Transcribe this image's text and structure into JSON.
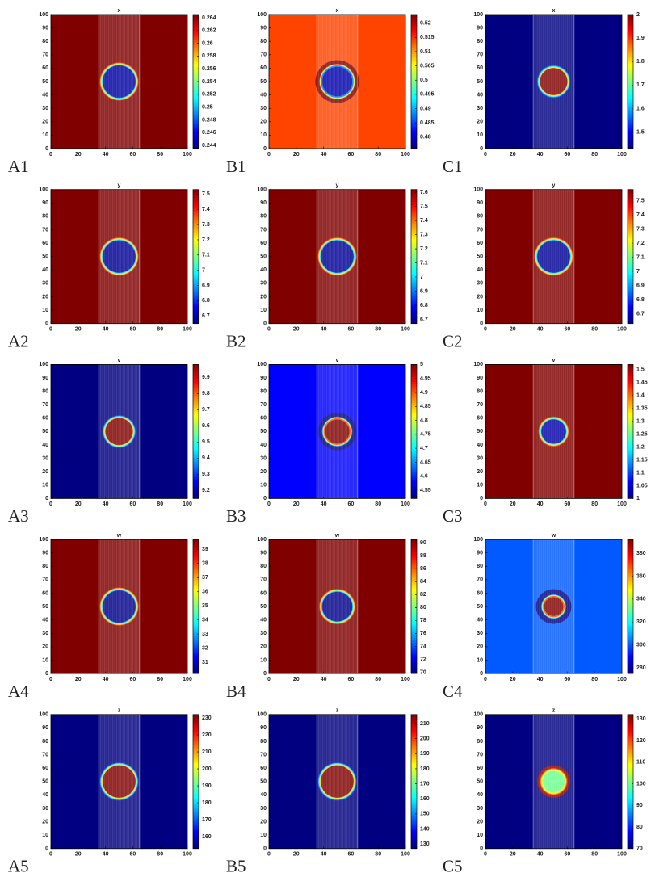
{
  "chart_data": [
    {
      "type": "heatmap",
      "title": "x",
      "panel_label": "A1",
      "xlim": [
        0,
        100
      ],
      "ylim": [
        0,
        100
      ],
      "xticks": [
        0,
        20,
        40,
        60,
        80,
        100
      ],
      "yticks": [
        0,
        10,
        20,
        30,
        40,
        50,
        60,
        70,
        80,
        90,
        100
      ],
      "clim": [
        0.2435,
        0.2645
      ],
      "cticks": [
        0.244,
        0.246,
        0.248,
        0.25,
        0.252,
        0.254,
        0.256,
        0.258,
        0.26,
        0.262,
        0.264
      ],
      "outer": 0.2645,
      "inner": 0.2442,
      "center": [
        50,
        50
      ],
      "radius": 13,
      "stripe": [
        35,
        65
      ]
    },
    {
      "type": "heatmap",
      "title": "x",
      "panel_label": "B1",
      "xlim": [
        0,
        100
      ],
      "ylim": [
        0,
        100
      ],
      "xticks": [
        0,
        20,
        40,
        60,
        80,
        100
      ],
      "yticks": [
        0,
        10,
        20,
        30,
        40,
        50,
        60,
        70,
        80,
        90,
        100
      ],
      "clim": [
        0.476,
        0.523
      ],
      "cticks": [
        0.48,
        0.485,
        0.49,
        0.495,
        0.5,
        0.505,
        0.51,
        0.515,
        0.52
      ],
      "outer": 0.514,
      "inner": 0.478,
      "center": [
        50,
        50
      ],
      "radius": 12,
      "stripe": [
        35,
        65
      ],
      "ring": {
        "value": 0.523,
        "radii": [
          12,
          16
        ]
      }
    },
    {
      "type": "heatmap",
      "title": "x",
      "panel_label": "C1",
      "xlim": [
        0,
        100
      ],
      "ylim": [
        0,
        100
      ],
      "xticks": [
        0,
        20,
        40,
        60,
        80,
        100
      ],
      "yticks": [
        0,
        10,
        20,
        30,
        40,
        50,
        60,
        70,
        80,
        90,
        100
      ],
      "clim": [
        1.43,
        2.0
      ],
      "cticks": [
        1.5,
        1.6,
        1.7,
        1.8,
        1.9,
        2
      ],
      "outer": 1.43,
      "inner": 2.0,
      "center": [
        50,
        50
      ],
      "radius": 11,
      "stripe": [
        35,
        65
      ]
    },
    {
      "type": "heatmap",
      "title": "y",
      "panel_label": "A2",
      "xlim": [
        0,
        100
      ],
      "ylim": [
        0,
        100
      ],
      "xticks": [
        0,
        20,
        40,
        60,
        80,
        100
      ],
      "yticks": [
        0,
        10,
        20,
        30,
        40,
        50,
        60,
        70,
        80,
        90,
        100
      ],
      "clim": [
        6.65,
        7.53
      ],
      "cticks": [
        6.7,
        6.8,
        6.9,
        7,
        7.1,
        7.2,
        7.3,
        7.4,
        7.5
      ],
      "outer": 7.53,
      "inner": 6.67,
      "center": [
        50,
        50
      ],
      "radius": 13,
      "stripe": [
        35,
        65
      ]
    },
    {
      "type": "heatmap",
      "title": "y",
      "panel_label": "B2",
      "xlim": [
        0,
        100
      ],
      "ylim": [
        0,
        100
      ],
      "xticks": [
        0,
        20,
        40,
        60,
        80,
        100
      ],
      "yticks": [
        0,
        10,
        20,
        30,
        40,
        50,
        60,
        70,
        80,
        90,
        100
      ],
      "clim": [
        6.67,
        7.62
      ],
      "cticks": [
        6.7,
        6.8,
        6.9,
        7,
        7.1,
        7.2,
        7.3,
        7.4,
        7.5,
        7.6
      ],
      "outer": 7.62,
      "inner": 6.69,
      "center": [
        50,
        50
      ],
      "radius": 13,
      "stripe": [
        35,
        65
      ]
    },
    {
      "type": "heatmap",
      "title": "y",
      "panel_label": "C2",
      "xlim": [
        0,
        100
      ],
      "ylim": [
        0,
        100
      ],
      "xticks": [
        0,
        20,
        40,
        60,
        80,
        100
      ],
      "yticks": [
        0,
        10,
        20,
        30,
        40,
        50,
        60,
        70,
        80,
        90,
        100
      ],
      "clim": [
        6.63,
        7.58
      ],
      "cticks": [
        6.7,
        6.8,
        6.9,
        7,
        7.1,
        7.2,
        7.3,
        7.4,
        7.5
      ],
      "outer": 7.58,
      "inner": 6.65,
      "center": [
        50,
        50
      ],
      "radius": 13,
      "stripe": [
        35,
        65
      ]
    },
    {
      "type": "heatmap",
      "title": "v",
      "panel_label": "A3",
      "xlim": [
        0,
        100
      ],
      "ylim": [
        0,
        100
      ],
      "xticks": [
        0,
        20,
        40,
        60,
        80,
        100
      ],
      "yticks": [
        0,
        10,
        20,
        30,
        40,
        50,
        60,
        70,
        80,
        90,
        100
      ],
      "clim": [
        9.15,
        9.98
      ],
      "cticks": [
        9.2,
        9.3,
        9.4,
        9.5,
        9.6,
        9.7,
        9.8,
        9.9
      ],
      "outer": 9.15,
      "inner": 9.98,
      "center": [
        50,
        50
      ],
      "radius": 11,
      "stripe": [
        35,
        65
      ]
    },
    {
      "type": "heatmap",
      "title": "v",
      "panel_label": "B3",
      "xlim": [
        0,
        100
      ],
      "ylim": [
        0,
        100
      ],
      "xticks": [
        0,
        20,
        40,
        60,
        80,
        100
      ],
      "yticks": [
        0,
        10,
        20,
        30,
        40,
        50,
        60,
        70,
        80,
        90,
        100
      ],
      "clim": [
        4.52,
        5.0
      ],
      "cticks": [
        4.55,
        4.6,
        4.65,
        4.7,
        4.75,
        4.8,
        4.85,
        4.9,
        4.95,
        5
      ],
      "outer": 4.58,
      "inner": 5.0,
      "center": [
        50,
        50
      ],
      "radius": 10,
      "stripe": [
        35,
        65
      ],
      "ring": {
        "value": 4.52,
        "radii": [
          10,
          14
        ]
      }
    },
    {
      "type": "heatmap",
      "title": "v",
      "panel_label": "C3",
      "xlim": [
        0,
        100
      ],
      "ylim": [
        0,
        100
      ],
      "xticks": [
        0,
        20,
        40,
        60,
        80,
        100
      ],
      "yticks": [
        0,
        10,
        20,
        30,
        40,
        50,
        60,
        70,
        80,
        90,
        100
      ],
      "clim": [
        1.0,
        1.52
      ],
      "cticks": [
        1,
        1.05,
        1.1,
        1.15,
        1.2,
        1.25,
        1.3,
        1.35,
        1.4,
        1.45,
        1.5
      ],
      "outer": 1.52,
      "inner": 1.02,
      "center": [
        50,
        50
      ],
      "radius": 10,
      "stripe": [
        35,
        65
      ]
    },
    {
      "type": "heatmap",
      "title": "w",
      "panel_label": "A4",
      "xlim": [
        0,
        100
      ],
      "ylim": [
        0,
        100
      ],
      "xticks": [
        0,
        20,
        40,
        60,
        80,
        100
      ],
      "yticks": [
        0,
        10,
        20,
        30,
        40,
        50,
        60,
        70,
        80,
        90,
        100
      ],
      "clim": [
        30.2,
        39.7
      ],
      "cticks": [
        31,
        32,
        33,
        34,
        35,
        36,
        37,
        38,
        39
      ],
      "outer": 39.7,
      "inner": 30.3,
      "center": [
        50,
        50
      ],
      "radius": 13,
      "stripe": [
        35,
        65
      ]
    },
    {
      "type": "heatmap",
      "title": "w",
      "panel_label": "B4",
      "xlim": [
        0,
        100
      ],
      "ylim": [
        0,
        100
      ],
      "xticks": [
        0,
        20,
        40,
        60,
        80,
        100
      ],
      "yticks": [
        0,
        10,
        20,
        30,
        40,
        50,
        60,
        70,
        80,
        90,
        100
      ],
      "clim": [
        69.8,
        90.5
      ],
      "cticks": [
        70,
        72,
        74,
        76,
        78,
        80,
        82,
        84,
        86,
        88,
        90
      ],
      "outer": 90.5,
      "inner": 70,
      "center": [
        50,
        50
      ],
      "radius": 12,
      "stripe": [
        35,
        65
      ]
    },
    {
      "type": "heatmap",
      "title": "w",
      "panel_label": "C4",
      "xlim": [
        0,
        100
      ],
      "ylim": [
        0,
        100
      ],
      "xticks": [
        0,
        20,
        40,
        60,
        80,
        100
      ],
      "yticks": [
        0,
        10,
        20,
        30,
        40,
        50,
        60,
        70,
        80,
        90,
        100
      ],
      "clim": [
        275,
        392
      ],
      "cticks": [
        280,
        300,
        320,
        340,
        360,
        380
      ],
      "outer": 300,
      "inner": 392,
      "center": [
        50,
        50
      ],
      "radius": 8,
      "stripe": [
        35,
        65
      ],
      "ring": {
        "value": 275,
        "radii": [
          8,
          13
        ]
      }
    },
    {
      "type": "heatmap",
      "title": "z",
      "panel_label": "A5",
      "xlim": [
        0,
        100
      ],
      "ylim": [
        0,
        100
      ],
      "xticks": [
        0,
        20,
        40,
        60,
        80,
        100
      ],
      "yticks": [
        0,
        10,
        20,
        30,
        40,
        50,
        60,
        70,
        80,
        90,
        100
      ],
      "clim": [
        153,
        232
      ],
      "cticks": [
        160,
        170,
        180,
        190,
        200,
        210,
        220,
        230
      ],
      "outer": 153,
      "inner": 232,
      "center": [
        50,
        50
      ],
      "radius": 13,
      "stripe": [
        35,
        65
      ]
    },
    {
      "type": "heatmap",
      "title": "z",
      "panel_label": "B5",
      "xlim": [
        0,
        100
      ],
      "ylim": [
        0,
        100
      ],
      "xticks": [
        0,
        20,
        40,
        60,
        80,
        100
      ],
      "yticks": [
        0,
        10,
        20,
        30,
        40,
        50,
        60,
        70,
        80,
        90,
        100
      ],
      "clim": [
        127,
        216
      ],
      "cticks": [
        130,
        140,
        150,
        160,
        170,
        180,
        190,
        200,
        210
      ],
      "outer": 127,
      "inner": 216,
      "center": [
        50,
        50
      ],
      "radius": 13,
      "stripe": [
        35,
        65
      ]
    },
    {
      "type": "heatmap",
      "title": "z",
      "panel_label": "C5",
      "xlim": [
        0,
        100
      ],
      "ylim": [
        0,
        100
      ],
      "xticks": [
        0,
        20,
        40,
        60,
        80,
        100
      ],
      "yticks": [
        0,
        10,
        20,
        30,
        40,
        50,
        60,
        70,
        80,
        90,
        100
      ],
      "clim": [
        70,
        132
      ],
      "cticks": [
        70,
        80,
        90,
        100,
        110,
        120,
        130
      ],
      "outer": 70,
      "inner": 100,
      "center": [
        50,
        50
      ],
      "radius": 9,
      "stripe": [
        35,
        65
      ],
      "ring": {
        "value": 132,
        "radii": [
          9,
          12
        ]
      }
    }
  ]
}
